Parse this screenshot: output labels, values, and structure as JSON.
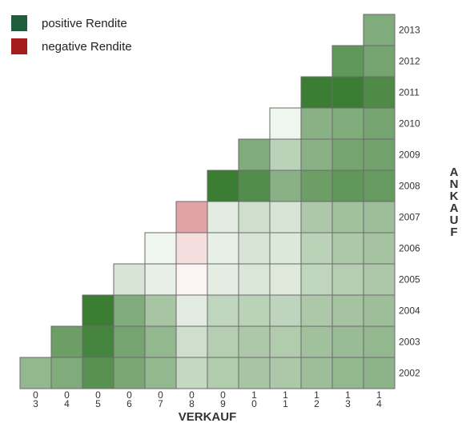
{
  "chart_data": {
    "type": "heatmap",
    "title": "",
    "xlabel": "VERKAUF",
    "ylabel": "ANKAUF",
    "x_categories": [
      "03",
      "04",
      "05",
      "06",
      "07",
      "08",
      "09",
      "10",
      "11",
      "12",
      "13",
      "14"
    ],
    "y_categories": [
      "2002",
      "2003",
      "2004",
      "2005",
      "2006",
      "2007",
      "2008",
      "2009",
      "2010",
      "2011",
      "2012",
      "2013"
    ],
    "value_scale": "return intensity (approx.): positive = green, negative = red, 0 = white",
    "legend": {
      "position": "top-left",
      "entries": [
        {
          "label": "positive Rendite",
          "color": "#1f5e3b"
        },
        {
          "label": "negative Rendite",
          "color": "#a51c1c"
        }
      ]
    },
    "colors": {
      "positive": "#3b7d33",
      "negative": "#c8585c",
      "cell_border": "#6a6a6a",
      "text": "#333333"
    },
    "rows": [
      {
        "ankauf": "2013",
        "values": [
          null,
          null,
          null,
          null,
          null,
          null,
          null,
          null,
          null,
          null,
          null,
          0.65
        ]
      },
      {
        "ankauf": "2012",
        "values": [
          null,
          null,
          null,
          null,
          null,
          null,
          null,
          null,
          null,
          null,
          0.8,
          0.7
        ]
      },
      {
        "ankauf": "2011",
        "values": [
          null,
          null,
          null,
          null,
          null,
          null,
          null,
          null,
          null,
          1.0,
          1.0,
          0.9
        ]
      },
      {
        "ankauf": "2010",
        "values": [
          null,
          null,
          null,
          null,
          null,
          null,
          null,
          null,
          0.08,
          0.6,
          0.65,
          0.7
        ]
      },
      {
        "ankauf": "2009",
        "values": [
          null,
          null,
          null,
          null,
          null,
          null,
          null,
          0.65,
          0.35,
          0.6,
          0.7,
          0.72
        ]
      },
      {
        "ankauf": "2008",
        "values": [
          null,
          null,
          null,
          null,
          null,
          null,
          1.0,
          0.88,
          0.6,
          0.75,
          0.8,
          0.78
        ]
      },
      {
        "ankauf": "2007",
        "values": [
          null,
          null,
          null,
          null,
          null,
          -0.55,
          0.15,
          0.25,
          0.2,
          0.42,
          0.48,
          0.5
        ]
      },
      {
        "ankauf": "2006",
        "values": [
          null,
          null,
          null,
          null,
          0.08,
          -0.2,
          0.12,
          0.2,
          0.18,
          0.35,
          0.42,
          0.46
        ]
      },
      {
        "ankauf": "2005",
        "values": [
          null,
          null,
          null,
          0.2,
          0.12,
          -0.07,
          0.14,
          0.19,
          0.17,
          0.32,
          0.38,
          0.42
        ]
      },
      {
        "ankauf": "2004",
        "values": [
          null,
          null,
          1.0,
          0.65,
          0.45,
          0.15,
          0.32,
          0.35,
          0.33,
          0.42,
          0.46,
          0.5
        ]
      },
      {
        "ankauf": "2003",
        "values": [
          null,
          0.75,
          0.95,
          0.7,
          0.55,
          0.25,
          0.38,
          0.42,
          0.4,
          0.48,
          0.52,
          0.55
        ]
      },
      {
        "ankauf": "2002",
        "values": [
          0.55,
          0.65,
          0.85,
          0.68,
          0.55,
          0.3,
          0.4,
          0.45,
          0.42,
          0.5,
          0.55,
          0.58
        ]
      }
    ]
  }
}
